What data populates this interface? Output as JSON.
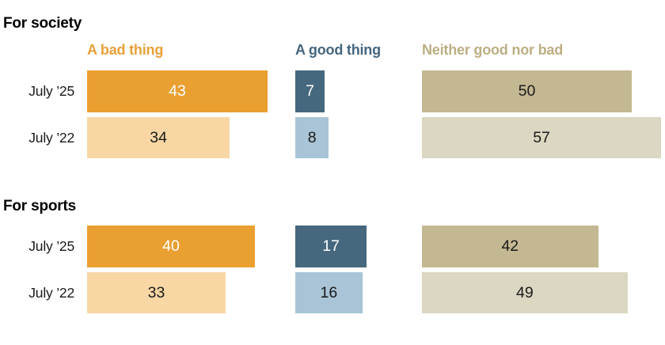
{
  "chart_data": {
    "type": "bar",
    "orientation": "horizontal",
    "value_unit": "percent",
    "xlim": [
      0,
      60
    ],
    "grid": false,
    "legend_position": "column-headers-above-bars",
    "series": [
      {
        "name": "A bad thing",
        "header_color": "#E9A039",
        "bar_color_recent": "#EA9F31",
        "bar_color_prior": "#F8D7A5"
      },
      {
        "name": "A good thing",
        "header_color": "#44657D",
        "bar_color_recent": "#45687E",
        "bar_color_prior": "#A9C4D6"
      },
      {
        "name": "Neither good nor bad",
        "header_color": "#BCAE82",
        "bar_color_recent": "#C4B892",
        "bar_color_prior": "#DCD7C2"
      }
    ],
    "groups": [
      {
        "title": "For society",
        "rows": [
          {
            "label": "July ’25",
            "values": [
              43,
              7,
              50
            ]
          },
          {
            "label": "July ’22",
            "values": [
              34,
              8,
              57
            ]
          }
        ]
      },
      {
        "title": "For sports",
        "rows": [
          {
            "label": "July ’25",
            "values": [
              40,
              17,
              42
            ]
          },
          {
            "label": "July ’22",
            "values": [
              33,
              16,
              49
            ]
          }
        ]
      }
    ]
  }
}
